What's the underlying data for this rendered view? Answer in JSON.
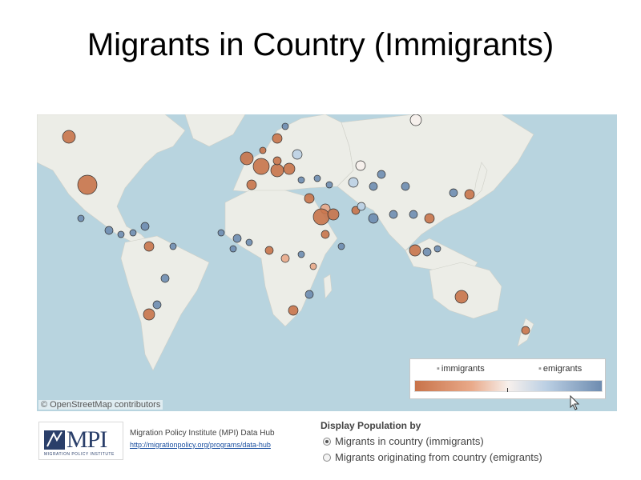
{
  "slide": {
    "title": "Migrants in Country (Immigrants)"
  },
  "map": {
    "attribution": "© OpenStreetMap contributors",
    "colors": {
      "ocean": "#b8d4df",
      "land": "#ecede7",
      "immigrant_dark": "#c8734a",
      "immigrant_light": "#e9a989",
      "emigrant_light": "#bcd0e4",
      "emigrant_dark": "#6e8cb0",
      "neutral": "#f7f0ec"
    },
    "legend": {
      "left_label": "immigrants",
      "right_label": "emigrants"
    }
  },
  "footer": {
    "logo": {
      "text": "MPI",
      "sub": "MIGRATION POLICY INSTITUTE"
    },
    "source_title": "Migration Policy Institute (MPI) Data Hub",
    "source_link": "http://migrationpolicy.org/programs/data-hub"
  },
  "display": {
    "heading": "Display Population by",
    "options": [
      {
        "label": "Migrants in country (immigrants)",
        "selected": true
      },
      {
        "label": "Migrants originating from country (emigrants)",
        "selected": false
      }
    ]
  }
}
